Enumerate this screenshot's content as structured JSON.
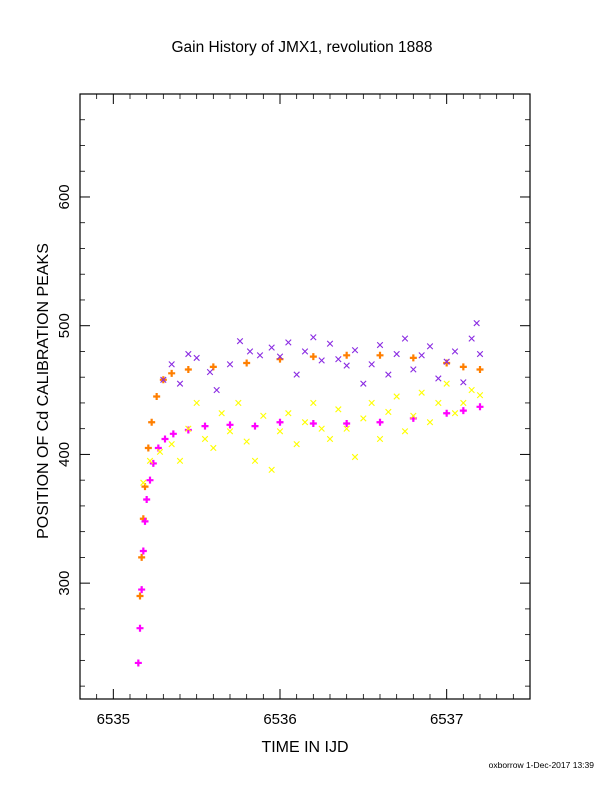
{
  "chart_data": {
    "type": "scatter",
    "title": "Gain History of JMX1, revolution 1888",
    "xlabel": "TIME IN IJD",
    "ylabel": "POSITION OF Cd CALIBRATION PEAKS",
    "xlim": [
      6534.8,
      6537.5
    ],
    "ylim": [
      210,
      680
    ],
    "xticks": [
      6535,
      6536,
      6537
    ],
    "yticks": [
      300,
      400,
      500,
      600
    ],
    "grid": false,
    "series": [
      {
        "color": "#ff7f00",
        "marker": "cross-dense",
        "points": [
          [
            6535.16,
            290
          ],
          [
            6535.17,
            320
          ],
          [
            6535.18,
            350
          ],
          [
            6535.19,
            375
          ],
          [
            6535.21,
            405
          ],
          [
            6535.23,
            425
          ],
          [
            6535.26,
            445
          ],
          [
            6535.3,
            458
          ],
          [
            6535.35,
            463
          ],
          [
            6535.45,
            466
          ],
          [
            6535.6,
            468
          ],
          [
            6535.8,
            471
          ],
          [
            6536.0,
            474
          ],
          [
            6536.2,
            476
          ],
          [
            6536.4,
            477
          ],
          [
            6536.6,
            477
          ],
          [
            6536.8,
            475
          ],
          [
            6537.0,
            471
          ],
          [
            6537.1,
            468
          ],
          [
            6537.2,
            466
          ]
        ]
      },
      {
        "color": "#ff00ff",
        "marker": "cross-dense",
        "points": [
          [
            6535.15,
            238
          ],
          [
            6535.16,
            265
          ],
          [
            6535.17,
            295
          ],
          [
            6535.18,
            325
          ],
          [
            6535.19,
            348
          ],
          [
            6535.2,
            365
          ],
          [
            6535.22,
            380
          ],
          [
            6535.24,
            393
          ],
          [
            6535.27,
            405
          ],
          [
            6535.31,
            412
          ],
          [
            6535.36,
            416
          ],
          [
            6535.45,
            419
          ],
          [
            6535.55,
            422
          ],
          [
            6535.7,
            423
          ],
          [
            6535.85,
            422
          ],
          [
            6536.0,
            425
          ],
          [
            6536.2,
            424
          ],
          [
            6536.4,
            424
          ],
          [
            6536.6,
            425
          ],
          [
            6536.8,
            428
          ],
          [
            6537.0,
            432
          ],
          [
            6537.1,
            434
          ],
          [
            6537.2,
            437
          ]
        ]
      },
      {
        "color": "#8a2be2",
        "marker": "x",
        "points": [
          [
            6535.3,
            458
          ],
          [
            6535.35,
            470
          ],
          [
            6535.4,
            455
          ],
          [
            6535.45,
            478
          ],
          [
            6535.5,
            475
          ],
          [
            6535.58,
            464
          ],
          [
            6535.62,
            450
          ],
          [
            6535.7,
            470
          ],
          [
            6535.76,
            488
          ],
          [
            6535.82,
            480
          ],
          [
            6535.88,
            477
          ],
          [
            6535.95,
            483
          ],
          [
            6536.0,
            476
          ],
          [
            6536.05,
            487
          ],
          [
            6536.1,
            462
          ],
          [
            6536.15,
            480
          ],
          [
            6536.2,
            491
          ],
          [
            6536.25,
            473
          ],
          [
            6536.3,
            486
          ],
          [
            6536.35,
            474
          ],
          [
            6536.4,
            469
          ],
          [
            6536.45,
            481
          ],
          [
            6536.5,
            455
          ],
          [
            6536.55,
            470
          ],
          [
            6536.6,
            485
          ],
          [
            6536.65,
            462
          ],
          [
            6536.7,
            478
          ],
          [
            6536.75,
            490
          ],
          [
            6536.8,
            466
          ],
          [
            6536.85,
            477
          ],
          [
            6536.9,
            484
          ],
          [
            6536.95,
            459
          ],
          [
            6537.0,
            472
          ],
          [
            6537.05,
            480
          ],
          [
            6537.1,
            456
          ],
          [
            6537.15,
            490
          ],
          [
            6537.18,
            502
          ],
          [
            6537.2,
            478
          ]
        ]
      },
      {
        "color": "#ffff00",
        "marker": "x",
        "points": [
          [
            6535.18,
            378
          ],
          [
            6535.22,
            395
          ],
          [
            6535.28,
            402
          ],
          [
            6535.35,
            408
          ],
          [
            6535.4,
            395
          ],
          [
            6535.45,
            420
          ],
          [
            6535.5,
            440
          ],
          [
            6535.55,
            412
          ],
          [
            6535.6,
            405
          ],
          [
            6535.65,
            432
          ],
          [
            6535.7,
            418
          ],
          [
            6535.75,
            440
          ],
          [
            6535.8,
            410
          ],
          [
            6535.85,
            395
          ],
          [
            6535.9,
            430
          ],
          [
            6535.95,
            388
          ],
          [
            6536.0,
            418
          ],
          [
            6536.05,
            432
          ],
          [
            6536.1,
            408
          ],
          [
            6536.15,
            425
          ],
          [
            6536.2,
            440
          ],
          [
            6536.25,
            420
          ],
          [
            6536.3,
            412
          ],
          [
            6536.35,
            435
          ],
          [
            6536.4,
            420
          ],
          [
            6536.45,
            398
          ],
          [
            6536.5,
            428
          ],
          [
            6536.55,
            440
          ],
          [
            6536.6,
            412
          ],
          [
            6536.65,
            433
          ],
          [
            6536.7,
            445
          ],
          [
            6536.75,
            418
          ],
          [
            6536.8,
            430
          ],
          [
            6536.85,
            448
          ],
          [
            6536.9,
            425
          ],
          [
            6536.95,
            440
          ],
          [
            6537.0,
            455
          ],
          [
            6537.05,
            432
          ],
          [
            6537.1,
            440
          ],
          [
            6537.15,
            450
          ],
          [
            6537.2,
            446
          ]
        ]
      }
    ]
  },
  "footer": {
    "credit": "oxborrow 1-Dec-2017 13:39"
  }
}
